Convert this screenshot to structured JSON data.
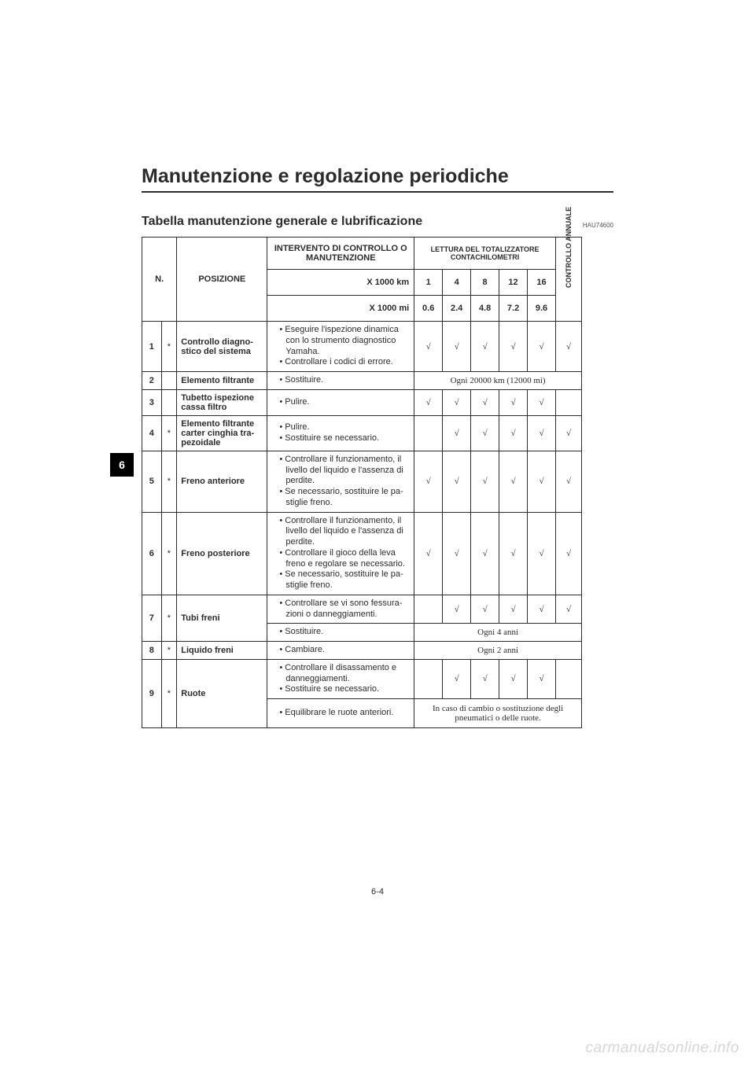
{
  "chapter_title": "Manutenzione e regolazione periodiche",
  "doc_code": "HAU74600",
  "section_title": "Tabella manutenzione generale e lubrificazione",
  "side_tab": "6",
  "page_number": "6-4",
  "watermark": "carmanualsonline.info",
  "headers": {
    "n": "N.",
    "posizione": "POSIZIONE",
    "intervento": "INTERVENTO DI CONTROLLO O MANUTENZIONE",
    "lettura": "LETTURA DEL TOTALIZZATORE CONTACHILOMETRI",
    "x1000km": "X 1000 km",
    "x1000mi": "X 1000 mi",
    "controllo_annuale": "CONTROLLO ANNUALE",
    "km": {
      "c1": "1",
      "c2": "4",
      "c3": "8",
      "c4": "12",
      "c5": "16"
    },
    "mi": {
      "c1": "0.6",
      "c2": "2.4",
      "c3": "4.8",
      "c4": "7.2",
      "c5": "9.6"
    }
  },
  "rows": {
    "r1": {
      "n": "1",
      "star": "*",
      "pos": "Controllo diagno­stico del sistema",
      "act1": "Eseguire l'ispezione dinamica con lo strumento diagnostico Yamaha.",
      "act2": "Controllare i codici di errore.",
      "c1": "√",
      "c2": "√",
      "c3": "√",
      "c4": "√",
      "c5": "√",
      "ann": "√"
    },
    "r2": {
      "n": "2",
      "star": "",
      "pos": "Elemento filtrante",
      "act1": "Sostituire.",
      "span": "Ogni 20000 km (12000 mi)"
    },
    "r3": {
      "n": "3",
      "star": "",
      "pos": "Tubetto ispezione cassa filtro",
      "act1": "Pulire.",
      "c1": "√",
      "c2": "√",
      "c3": "√",
      "c4": "√",
      "c5": "√",
      "ann": ""
    },
    "r4": {
      "n": "4",
      "star": "*",
      "pos": "Elemento filtrante carter cinghia tra­pezoidale",
      "act1": "Pulire.",
      "act2": "Sostituire se necessario.",
      "c1": "",
      "c2": "√",
      "c3": "√",
      "c4": "√",
      "c5": "√",
      "ann": "√"
    },
    "r5": {
      "n": "5",
      "star": "*",
      "pos": "Freno anteriore",
      "act1": "Controllare il funzionamento, il livello del liquido e l'assenza di perdite.",
      "act2": "Se necessario, sostituire le pa­stiglie freno.",
      "c1": "√",
      "c2": "√",
      "c3": "√",
      "c4": "√",
      "c5": "√",
      "ann": "√"
    },
    "r6": {
      "n": "6",
      "star": "*",
      "pos": "Freno posteriore",
      "act1": "Controllare il funzionamento, il livello del liquido e l'assenza di perdite.",
      "act2": "Controllare il gioco della leva freno e regolare se necessario.",
      "act3": "Se necessario, sostituire le pa­stiglie freno.",
      "c1": "√",
      "c2": "√",
      "c3": "√",
      "c4": "√",
      "c5": "√",
      "ann": "√"
    },
    "r7a": {
      "n": "7",
      "star": "*",
      "pos": "Tubi freni",
      "act1": "Controllare se vi sono fessura­zioni o danneggiamenti.",
      "c1": "",
      "c2": "√",
      "c3": "√",
      "c4": "√",
      "c5": "√",
      "ann": "√"
    },
    "r7b": {
      "act1": "Sostituire.",
      "span": "Ogni 4 anni"
    },
    "r8": {
      "n": "8",
      "star": "*",
      "pos": "Liquido freni",
      "act1": "Cambiare.",
      "span": "Ogni 2 anni"
    },
    "r9a": {
      "n": "9",
      "star": "*",
      "pos": "Ruote",
      "act1": "Controllare il disassamento e danneggiamenti.",
      "act2": "Sostituire se necessario.",
      "c1": "",
      "c2": "√",
      "c3": "√",
      "c4": "√",
      "c5": "√",
      "ann": ""
    },
    "r9b": {
      "act1": "Equilibrare le ruote anteriori.",
      "span": "In caso di cambio o sostituzio­ne degli pneumatici o delle ruo­te."
    }
  }
}
